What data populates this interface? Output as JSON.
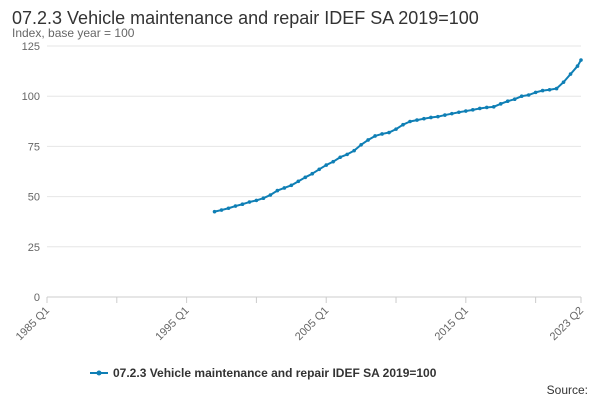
{
  "colors": {
    "series": "#0f7fb5",
    "grid": "#e6e6e6",
    "axis": "#cccccc",
    "text": "#333333",
    "muted": "#666666"
  },
  "source_text": "Source:",
  "chart_data": {
    "type": "line",
    "title": "07.2.3 Vehicle maintenance and repair IDEF SA 2019=100",
    "subtitle": "Index, base year = 100",
    "xlabel": "",
    "ylabel": "",
    "grid": true,
    "legend_position": "bottom-center",
    "xlim": [
      "1985 Q1",
      "2023 Q2"
    ],
    "ylim": [
      0,
      125
    ],
    "x_ticks": [
      "1985 Q1",
      "1995 Q1",
      "2005 Q1",
      "2015 Q1",
      "2023 Q2"
    ],
    "y_ticks": [
      "0",
      "25",
      "50",
      "75",
      "100",
      "125"
    ],
    "series": [
      {
        "name": "07.2.3 Vehicle maintenance and repair IDEF SA 2019=100",
        "x": [
          "1997 Q1",
          "1997 Q3",
          "1998 Q1",
          "1998 Q3",
          "1999 Q1",
          "1999 Q3",
          "2000 Q1",
          "2000 Q3",
          "2001 Q1",
          "2001 Q3",
          "2002 Q1",
          "2002 Q3",
          "2003 Q1",
          "2003 Q3",
          "2004 Q1",
          "2004 Q3",
          "2005 Q1",
          "2005 Q3",
          "2006 Q1",
          "2006 Q3",
          "2007 Q1",
          "2007 Q3",
          "2008 Q1",
          "2008 Q3",
          "2009 Q1",
          "2009 Q3",
          "2010 Q1",
          "2010 Q3",
          "2011 Q1",
          "2011 Q3",
          "2012 Q1",
          "2012 Q3",
          "2013 Q1",
          "2013 Q3",
          "2014 Q1",
          "2014 Q3",
          "2015 Q1",
          "2015 Q3",
          "2016 Q1",
          "2016 Q3",
          "2017 Q1",
          "2017 Q3",
          "2018 Q1",
          "2018 Q3",
          "2019 Q1",
          "2019 Q3",
          "2020 Q1",
          "2020 Q3",
          "2021 Q1",
          "2021 Q3",
          "2022 Q1",
          "2022 Q3",
          "2023 Q1",
          "2023 Q2"
        ],
        "values": [
          42.5,
          43.3,
          44.2,
          45.3,
          46.2,
          47.3,
          48.1,
          49.2,
          50.8,
          53.0,
          54.3,
          55.6,
          57.6,
          59.6,
          61.4,
          63.6,
          65.7,
          67.4,
          69.6,
          71.0,
          72.9,
          75.8,
          78.2,
          80.2,
          81.2,
          81.9,
          83.6,
          85.8,
          87.4,
          88.1,
          88.8,
          89.4,
          89.8,
          90.6,
          91.3,
          92.0,
          92.6,
          93.2,
          93.9,
          94.4,
          94.7,
          96.2,
          97.5,
          98.5,
          100.0,
          100.6,
          101.9,
          102.8,
          103.2,
          103.8,
          107.0,
          111.0,
          115.0,
          118.0
        ]
      }
    ]
  }
}
